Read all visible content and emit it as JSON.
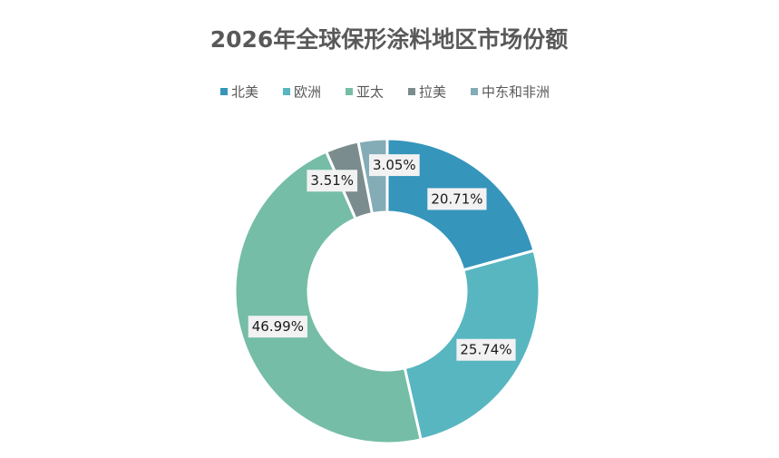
{
  "chart_data": {
    "type": "donut",
    "title": "2026年全球保形涂料地区市场份额",
    "categories": [
      "北美",
      "欧洲",
      "亚太",
      "拉美",
      "中东和非洲"
    ],
    "values": [
      20.71,
      25.74,
      46.99,
      3.51,
      3.05
    ],
    "value_labels": [
      "20.71%",
      "25.74%",
      "46.99%",
      "3.51%",
      "3.05%"
    ],
    "colors": [
      "#3595bb",
      "#58b6c0",
      "#75bda7",
      "#7a8c8e",
      "#84acb6"
    ],
    "legend": "top"
  }
}
